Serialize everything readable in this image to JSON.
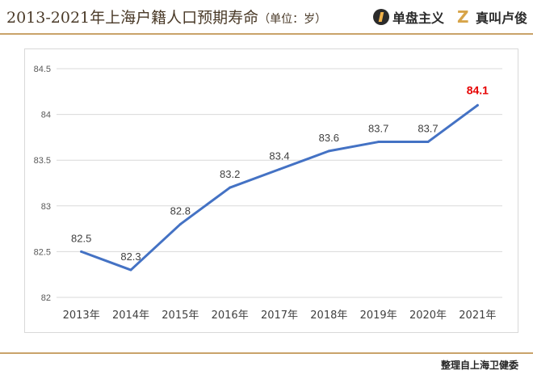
{
  "header": {
    "title": "2013-2021年上海户籍人口预期寿命",
    "unit": "（单位：岁）",
    "brand_primary": "单盘主义",
    "brand_secondary": "真叫卢俊"
  },
  "footer": {
    "source": "整理自上海卫健委"
  },
  "colors": {
    "line": "#4472c4",
    "highlight": "#e60000",
    "accent_rule": "#c9a36a",
    "grid": "#d9d9d9"
  },
  "chart_data": {
    "type": "line",
    "categories": [
      "2013年",
      "2014年",
      "2015年",
      "2016年",
      "2017年",
      "2018年",
      "2019年",
      "2020年",
      "2021年"
    ],
    "series": [
      {
        "values": [
          82.5,
          82.3,
          82.8,
          83.2,
          83.4,
          83.6,
          83.7,
          83.7,
          84.1
        ]
      }
    ],
    "data_labels": [
      "82.5",
      "82.3",
      "82.8",
      "83.2",
      "83.4",
      "83.6",
      "83.7",
      "83.7",
      "84.1"
    ],
    "highlight_index": 8,
    "ylim": [
      82,
      84.5
    ],
    "yticks": [
      82,
      82.5,
      83,
      83.5,
      84,
      84.5
    ],
    "ytick_labels": [
      "82",
      "82.5",
      "83",
      "83.5",
      "84",
      "84.5"
    ],
    "grid": true,
    "legend": "none"
  }
}
